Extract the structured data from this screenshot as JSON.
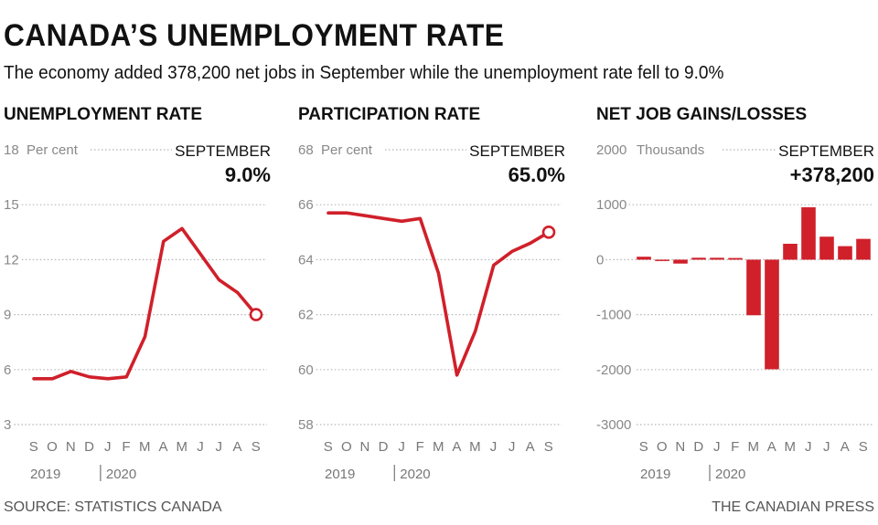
{
  "title": "CANADA’S UNEMPLOYMENT RATE",
  "subtitle": "The economy added 378,200 net jobs in September while the unemployment rate fell to 9.0%",
  "source": "SOURCE: STATISTICS CANADA",
  "credit": "THE CANADIAN PRESS",
  "colors": {
    "accent": "#d0202a",
    "grid": "#b5b5b5"
  },
  "chart_data": [
    {
      "type": "line",
      "title": "UNEMPLOYMENT RATE",
      "unit_label": "Per cent",
      "ylim": [
        3,
        18
      ],
      "yticks": [
        "18",
        "15",
        "12",
        "9",
        "6",
        "3"
      ],
      "categories": [
        "S",
        "O",
        "N",
        "D",
        "J",
        "F",
        "M",
        "A",
        "M",
        "J",
        "J",
        "A",
        "S"
      ],
      "values": [
        5.5,
        5.5,
        5.9,
        5.6,
        5.5,
        5.6,
        7.8,
        13.0,
        13.7,
        12.3,
        10.9,
        10.2,
        9.0
      ],
      "callout_label": "SEPTEMBER",
      "callout_value": "9.0%",
      "years": [
        "2019",
        "2020"
      ]
    },
    {
      "type": "line",
      "title": "PARTICIPATION RATE",
      "unit_label": "Per cent",
      "ylim": [
        58,
        68
      ],
      "yticks": [
        "68",
        "66",
        "64",
        "62",
        "60",
        "58"
      ],
      "categories": [
        "S",
        "O",
        "N",
        "D",
        "J",
        "F",
        "M",
        "A",
        "M",
        "J",
        "J",
        "A",
        "S"
      ],
      "values": [
        65.7,
        65.7,
        65.6,
        65.5,
        65.4,
        65.5,
        63.5,
        59.8,
        61.4,
        63.8,
        64.3,
        64.6,
        65.0
      ],
      "callout_label": "SEPTEMBER",
      "callout_value": "65.0%",
      "years": [
        "2019",
        "2020"
      ]
    },
    {
      "type": "bar",
      "title": "NET JOB GAINS/LOSSES",
      "unit_label": "Thousands",
      "ylim": [
        -3000,
        2000
      ],
      "yticks": [
        "2000",
        "1000",
        "0",
        "-1000",
        "-2000",
        "-3000"
      ],
      "categories": [
        "S",
        "O",
        "N",
        "D",
        "J",
        "F",
        "M",
        "A",
        "M",
        "J",
        "J",
        "A",
        "S"
      ],
      "values": [
        53.7,
        -1.8,
        -71.2,
        35.2,
        34.5,
        30.3,
        -1011.2,
        -1993.8,
        289.6,
        952.9,
        418.5,
        245.8,
        378.2
      ],
      "callout_label": "SEPTEMBER",
      "callout_value": "+378,200",
      "years": [
        "2019",
        "2020"
      ]
    }
  ]
}
